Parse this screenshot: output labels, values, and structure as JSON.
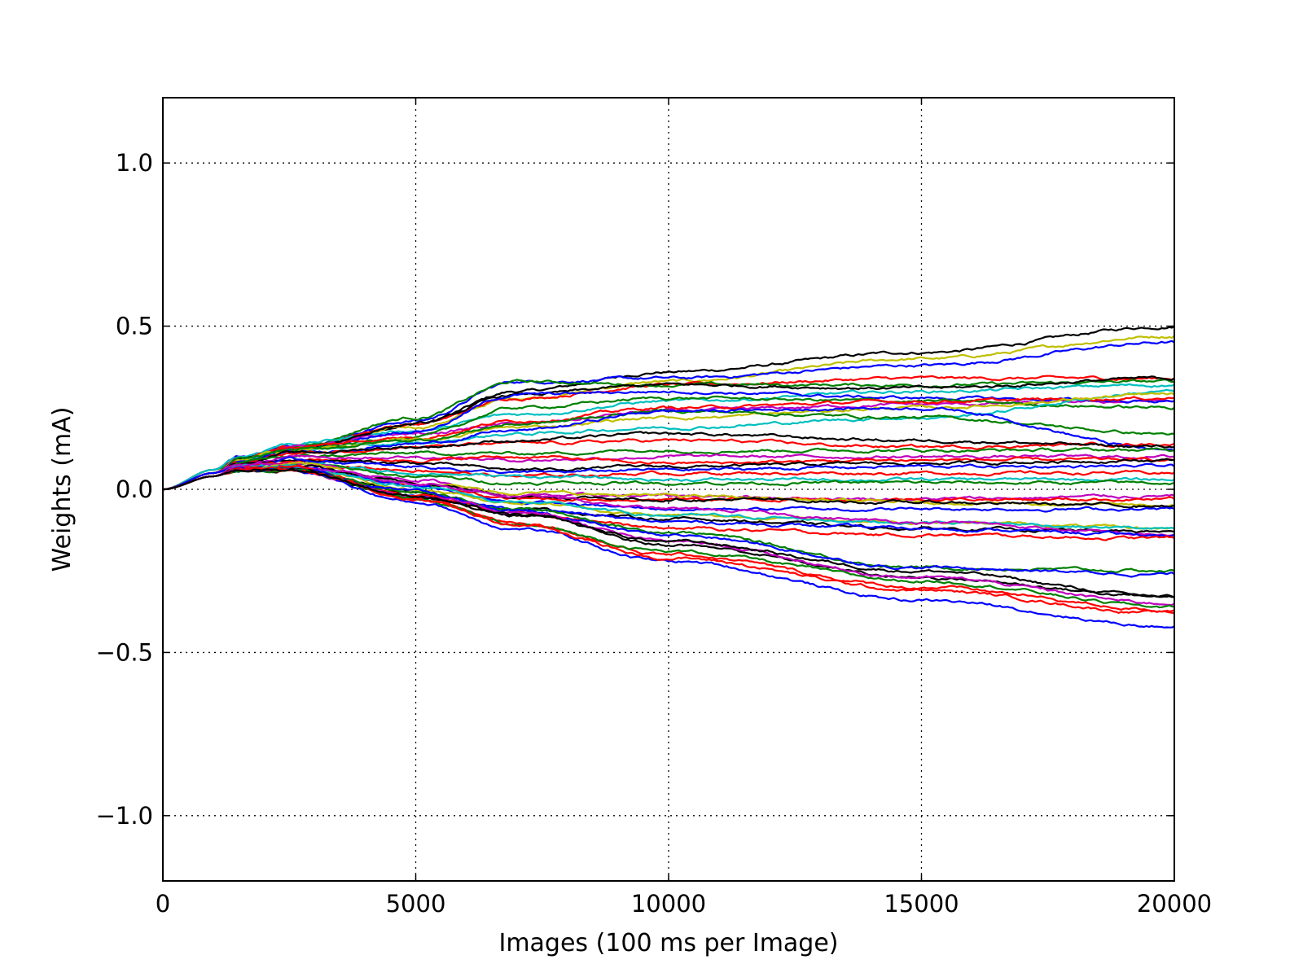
{
  "chart_data": {
    "type": "line",
    "title": "",
    "xlabel": "Images (100 ms per Image)",
    "ylabel": "Weights (mA)",
    "xlim": [
      0,
      20000
    ],
    "ylim": [
      -1.2,
      1.2
    ],
    "grid": true,
    "grid_style": "dotted",
    "legend": "none",
    "x_ticks": [
      0,
      5000,
      10000,
      15000,
      20000
    ],
    "x_tick_labels": [
      "0",
      "5000",
      "10000",
      "15000",
      "20000"
    ],
    "y_ticks": [
      -1.0,
      -0.5,
      0.0,
      0.5,
      1.0
    ],
    "y_tick_labels": [
      "−1.0",
      "−0.5",
      "0.0",
      "0.5",
      "1.0"
    ],
    "x": [
      0,
      1000,
      1500,
      2500,
      5000,
      7000,
      10000,
      15000,
      20000
    ],
    "series": [
      {
        "color": "#000000",
        "values": [
          0,
          0.05,
          0.08,
          0.12,
          0.2,
          0.3,
          0.36,
          0.42,
          0.5
        ]
      },
      {
        "color": "#bfbf00",
        "values": [
          0,
          0.05,
          0.08,
          0.12,
          0.19,
          0.28,
          0.33,
          0.4,
          0.47
        ]
      },
      {
        "color": "#0000ff",
        "values": [
          0,
          0.06,
          0.1,
          0.13,
          0.21,
          0.33,
          0.34,
          0.38,
          0.45
        ]
      },
      {
        "color": "#ff0000",
        "values": [
          0,
          0.06,
          0.09,
          0.13,
          0.2,
          0.28,
          0.32,
          0.34,
          0.34
        ]
      },
      {
        "color": "#008000",
        "values": [
          0,
          0.06,
          0.09,
          0.13,
          0.22,
          0.33,
          0.32,
          0.32,
          0.33
        ]
      },
      {
        "color": "#00bfbf",
        "values": [
          0,
          0.06,
          0.1,
          0.14,
          0.18,
          0.23,
          0.27,
          0.3,
          0.32
        ]
      },
      {
        "color": "#bf00bf",
        "values": [
          0,
          0.05,
          0.09,
          0.13,
          0.17,
          0.2,
          0.24,
          0.26,
          0.27
        ]
      },
      {
        "color": "#000000",
        "values": [
          0,
          0.05,
          0.09,
          0.12,
          0.2,
          0.29,
          0.32,
          0.31,
          0.34
        ]
      },
      {
        "color": "#0000ff",
        "values": [
          0,
          0.05,
          0.08,
          0.12,
          0.18,
          0.29,
          0.3,
          0.28,
          0.27
        ]
      },
      {
        "color": "#008000",
        "values": [
          0,
          0.05,
          0.09,
          0.12,
          0.16,
          0.25,
          0.28,
          0.27,
          0.25
        ]
      },
      {
        "color": "#ff0000",
        "values": [
          0,
          0.05,
          0.09,
          0.13,
          0.16,
          0.21,
          0.25,
          0.27,
          0.28
        ]
      },
      {
        "color": "#00bfbf",
        "values": [
          0,
          0.05,
          0.09,
          0.12,
          0.14,
          0.17,
          0.19,
          0.22,
          0.3
        ]
      },
      {
        "color": "#bfbf00",
        "values": [
          0,
          0.05,
          0.09,
          0.12,
          0.15,
          0.19,
          0.22,
          0.25,
          0.29
        ]
      },
      {
        "color": "#008000",
        "values": [
          0,
          0.05,
          0.09,
          0.12,
          0.15,
          0.2,
          0.24,
          0.22,
          0.17
        ]
      },
      {
        "color": "#0000ff",
        "values": [
          0,
          0.05,
          0.08,
          0.11,
          0.14,
          0.18,
          0.24,
          0.25,
          0.12
        ]
      },
      {
        "color": "#ff0000",
        "values": [
          0,
          0.05,
          0.08,
          0.11,
          0.13,
          0.14,
          0.15,
          0.13,
          0.14
        ]
      },
      {
        "color": "#000000",
        "values": [
          0,
          0.05,
          0.08,
          0.11,
          0.13,
          0.15,
          0.17,
          0.15,
          0.13
        ]
      },
      {
        "color": "#008000",
        "values": [
          0,
          0.05,
          0.08,
          0.1,
          0.11,
          0.11,
          0.12,
          0.12,
          0.12
        ]
      },
      {
        "color": "#bf00bf",
        "values": [
          0,
          0.05,
          0.08,
          0.1,
          0.1,
          0.09,
          0.1,
          0.1,
          0.1
        ]
      },
      {
        "color": "#ff0000",
        "values": [
          0,
          0.05,
          0.07,
          0.09,
          0.09,
          0.1,
          0.08,
          0.09,
          0.09
        ]
      },
      {
        "color": "#000000",
        "values": [
          0,
          0.04,
          0.07,
          0.09,
          0.08,
          0.06,
          0.07,
          0.08,
          0.09
        ]
      },
      {
        "color": "#0000ff",
        "values": [
          0,
          0.05,
          0.07,
          0.09,
          0.07,
          0.05,
          0.06,
          0.07,
          0.07
        ]
      },
      {
        "color": "#ff0000",
        "values": [
          0,
          0.04,
          0.07,
          0.08,
          0.06,
          0.04,
          0.05,
          0.05,
          0.05
        ]
      },
      {
        "color": "#00bfbf",
        "values": [
          0,
          0.04,
          0.07,
          0.08,
          0.05,
          0.04,
          0.03,
          0.03,
          0.03
        ]
      },
      {
        "color": "#008000",
        "values": [
          0,
          0.04,
          0.06,
          0.08,
          0.04,
          0.02,
          0.02,
          0.02,
          0.02
        ]
      },
      {
        "color": "#bf00bf",
        "values": [
          0,
          0.04,
          0.07,
          0.08,
          0.03,
          -0.02,
          -0.02,
          -0.03,
          -0.02
        ]
      },
      {
        "color": "#ff0000",
        "values": [
          0,
          0.04,
          0.06,
          0.07,
          0.01,
          -0.03,
          -0.03,
          -0.03,
          -0.03
        ]
      },
      {
        "color": "#bfbf00",
        "values": [
          0,
          0.04,
          0.06,
          0.08,
          0.02,
          -0.01,
          -0.02,
          -0.04,
          -0.05
        ]
      },
      {
        "color": "#000000",
        "values": [
          0,
          0.04,
          0.06,
          0.07,
          0.02,
          -0.02,
          -0.03,
          -0.04,
          -0.05
        ]
      },
      {
        "color": "#0000ff",
        "values": [
          0,
          0.04,
          0.06,
          0.07,
          0.01,
          -0.04,
          -0.06,
          -0.06,
          -0.06
        ]
      },
      {
        "color": "#bfbf00",
        "values": [
          0,
          0.04,
          0.06,
          0.07,
          0.0,
          -0.04,
          -0.08,
          -0.1,
          -0.12
        ]
      },
      {
        "color": "#00bfbf",
        "values": [
          0,
          0.04,
          0.06,
          0.07,
          0.01,
          -0.04,
          -0.08,
          -0.1,
          -0.12
        ]
      },
      {
        "color": "#000000",
        "values": [
          0,
          0.04,
          0.06,
          0.06,
          -0.01,
          -0.06,
          -0.09,
          -0.12,
          -0.13
        ]
      },
      {
        "color": "#bf00bf",
        "values": [
          0,
          0.04,
          0.06,
          0.07,
          0.02,
          -0.02,
          -0.06,
          -0.1,
          -0.14
        ]
      },
      {
        "color": "#0000ff",
        "values": [
          0,
          0.04,
          0.06,
          0.06,
          -0.02,
          -0.06,
          -0.1,
          -0.12,
          -0.14
        ]
      },
      {
        "color": "#ff0000",
        "values": [
          0,
          0.04,
          0.06,
          0.07,
          -0.02,
          -0.07,
          -0.12,
          -0.14,
          -0.15
        ]
      },
      {
        "color": "#008000",
        "values": [
          0,
          0.04,
          0.06,
          0.06,
          -0.01,
          -0.06,
          -0.13,
          -0.24,
          -0.25
        ]
      },
      {
        "color": "#0000ff",
        "values": [
          0,
          0.04,
          0.06,
          0.06,
          -0.01,
          -0.07,
          -0.14,
          -0.24,
          -0.26
        ]
      },
      {
        "color": "#000000",
        "values": [
          0,
          0.04,
          0.06,
          0.06,
          -0.02,
          -0.08,
          -0.17,
          -0.27,
          -0.33
        ]
      },
      {
        "color": "#bf00bf",
        "values": [
          0,
          0.04,
          0.06,
          0.06,
          -0.02,
          -0.07,
          -0.16,
          -0.27,
          -0.35
        ]
      },
      {
        "color": "#ff0000",
        "values": [
          0,
          0.04,
          0.06,
          0.06,
          -0.03,
          -0.1,
          -0.2,
          -0.3,
          -0.37
        ]
      },
      {
        "color": "#008000",
        "values": [
          0,
          0.04,
          0.06,
          0.06,
          -0.03,
          -0.11,
          -0.19,
          -0.28,
          -0.36
        ]
      },
      {
        "color": "#0000ff",
        "values": [
          0,
          0.04,
          0.06,
          0.06,
          -0.04,
          -0.12,
          -0.22,
          -0.34,
          -0.42
        ]
      },
      {
        "color": "#ff0000",
        "values": [
          0,
          0.04,
          0.06,
          0.06,
          -0.03,
          -0.11,
          -0.21,
          -0.31,
          -0.38
        ]
      },
      {
        "color": "#000000",
        "values": [
          0,
          0.04,
          0.06,
          0.06,
          -0.02,
          -0.08,
          -0.16,
          -0.25,
          -0.33
        ]
      }
    ]
  }
}
